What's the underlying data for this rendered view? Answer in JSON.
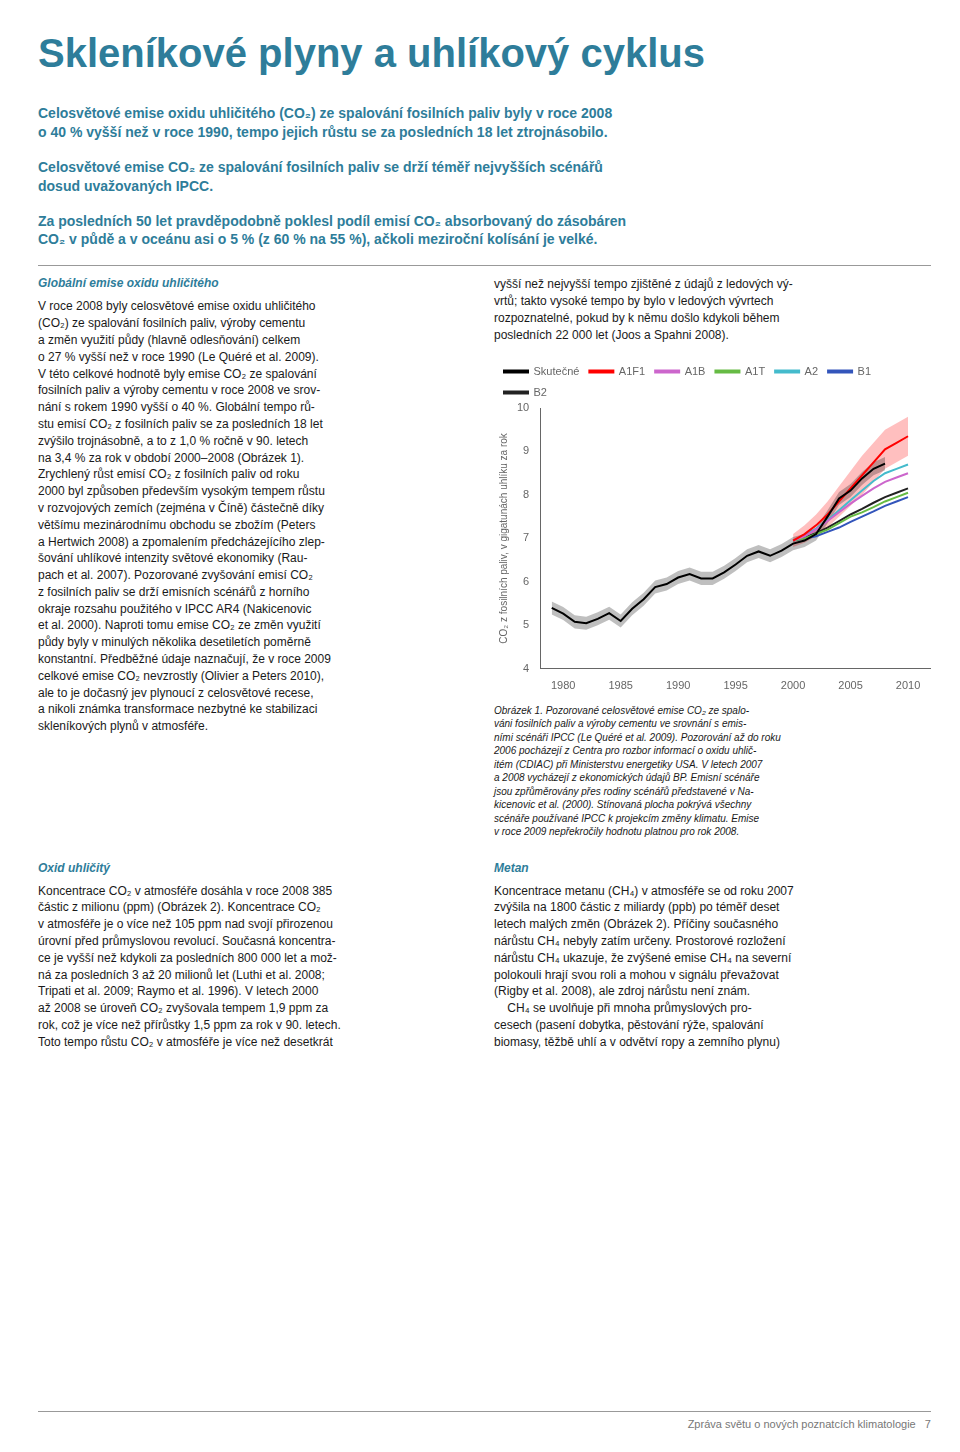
{
  "title": "Skleníkové plyny a uhlíkový cyklus",
  "paragraphs": [
    "Celosvětové emise oxidu uhličitého (CO₂) ze spalování fosilních paliv byly v roce 2008\no 40 % vyšší než v roce 1990, tempo jejich růstu se za posledních 18 let ztrojnásobilo.",
    "Celosvětové emise CO₂ ze spalování fosilních paliv se drží téměř nejvyšších scénářů\ndosud uvažovaných IPCC.",
    "Za posledních 50 let pravděpodobně poklesl podíl emisí CO₂ absorbovaný do zásobáren\nCO₂ v půdě a v oceánu asi o 5 % (z 60 % na 55 %), ačkoli meziroční kolísání je velké."
  ],
  "sections": [
    {
      "title": "Globální emise oxidu uhličitého",
      "body": "V roce 2008 byly celosvětové emise oxidu uhličitého\n(CO₂) ze spalování fosilních paliv, výroby cementu\na změn využití půdy (hlavně odlesňování) celkem\no 27 % vyšší než v roce 1990 (Le Quéré et al. 2009).\nV této celkové hodnotě byly emise CO₂ ze spalování\nfosilních paliv a výroby cementu v roce 2008 ve srov-\nnání s rokem 1990 vyšší o 40 %. Globální tempo rů-\nstu emisí CO₂ z fosilních paliv se za posledních 18 let\nzvýšilo trojnásobně, a to z 1,0 % ročně v 90. letech\nna 3,4 % za rok v období 2000–2008 (Obrázek 1).\nZrychlený růst emisí CO₂ z fosilních paliv od roku\n2000 byl způsoben především vysokým tempem růstu\nv rozvojových zemích (zejména v Číně) částečně díky\nvětšímu mezinárodnímu obchodu se zbožím (Peters\na Hertwich 2008) a zpomalením předcházejícího zlep-\nšování uhlíkové intenzity světové ekonomiky (Rau-\npach et al. 2007). Pozorované zvyšování emisí CO₂\nz fosilních paliv se drží emisních scénářů z horního\nokraje rozsahu použitého v IPCC AR4 (Nakicenovic\net al. 2000). Naproti tomu emise CO₂ ze změn využití\npůdy byly v minulých několika desetiletích poměrně\nkonstantní. Předběžné údaje naznačují, že v roce 2009\ncelkové emise CO₂ nevzrostly (Olivier a Peters 2010),\nale to je dočasný jev plynoucí z celosvětové recese,\na nikoli známka transformace nezbytné ke stabilizaci\nskleníkových plynů v atmosféře."
    },
    {
      "title": "Oxid uhličitý",
      "body": "Koncentrace CO₂ v atmosféře dosáhla v roce 2008 385\nčástic z milionu (ppm) (Obrázek 2). Koncentrace CO₂\nv atmosféře je o více než 105 ppm nad svojí přirozenou\núrovní před průmyslovou revolucí. Současná koncentra-\nce je vyšší než kdykoli za posledních 800 000 let a mož-\nná za posledních 3 až 20 milionů let (Luthi et al. 2008;\nTripati et al. 2009; Raymo et al. 1996). V letech 2000\naž 2008 se úroveň CO₂ zvyšovala tempem 1,9 ppm za\nrok, což je více než přírůstky 1,5 ppm za rok v 90. letech.\nToto tempo růstu CO₂ v atmosféře je více než desetkrát"
    },
    {
      "title": "Metan",
      "body": "Koncentrace metanu (CH₄) v atmosféře se od roku 2007\nzvýšila na 1800 částic z miliardy (ppb) po téměř deset\nletech malých změn (Obrázek 2). Příčiny současného\nnárůstu CH₄ nebyly zatím určeny. Prostorové rozložení\nnárůstu CH₄ ukazuje, že zvýšené emise CH₄ na severní\npolokouli hrají svou roli a mohou v signálu převažovat\n(Rigby et al. 2008), ale zdroj nárůstu není znám.\n    CH₄ se uvolňuje při mnoha průmyslových pro-\ncesech (pasení dobytka, pěstování rýže, spalování\nbiomasy, těžbě uhlí a v odvětví ropy a zemního plynu)"
    }
  ],
  "right_top": "vyšší než nejvyšší tempo zjištěné z údajů z ledových vý-\nvrtů; takto vysoké tempo by bylo v ledových vývrtech\nrozpoznatelné, pokud by k němu došlo kdykoli během\nposledních 22 000 let (Joos a Spahni 2008).",
  "footer": "Zpráva světu o nových poznatcích klimatologie   7",
  "chart_data": {
    "type": "line",
    "ylabel": "CO₂ z fosilních paliv, v gigatunách uhlíku za rok",
    "caption": "Obrázek 1. Pozorované celosvětové emise CO₂ ze spalo-\nváni fosilních paliv a výroby cementu ve srovnání s emis-\nními scénáři IPCC (Le Quéré et al. 2009). Pozorování až do roku\n2006 pocházejí z Centra pro rozbor informací o oxidu uhlič-\nitém (CDIAC) při Ministerstvu energetiky USA. V letech 2007\na 2008 vycházejí z ekonomických údajů BP. Emisní scénáře\njsou zpřůměrovány přes rodiny scénářů představené v Na-\nkicenovic et al. (2000). Stínovaná plocha pokrývá všechny\nscénáře používané IPCC k projekcím změny klimatu. Emise\nv roce 2009 nepřekročily hodnotu platnou pro rok 2008.",
    "xlim": [
      1978,
      2012
    ],
    "xticks": [
      1980,
      1985,
      1990,
      1995,
      2000,
      2005,
      2010
    ],
    "ylim": [
      4,
      10
    ],
    "yticks": [
      4,
      5,
      6,
      7,
      8,
      9,
      10
    ],
    "grid": false,
    "legend": "upper left",
    "series": [
      {
        "name": "Skutečné",
        "color": "#000000",
        "x": [
          1979,
          1980,
          1981,
          1982,
          1983,
          1984,
          1985,
          1986,
          1987,
          1988,
          1989,
          1990,
          1991,
          1992,
          1993,
          1994,
          1995,
          1996,
          1997,
          1998,
          1999,
          2000,
          2001,
          2002,
          2003,
          2004,
          2005,
          2006,
          2007,
          2008
        ],
        "values": [
          5.4,
          5.27,
          5.08,
          5.05,
          5.15,
          5.28,
          5.1,
          5.38,
          5.6,
          5.88,
          5.95,
          6.1,
          6.18,
          6.08,
          6.08,
          6.22,
          6.4,
          6.6,
          6.7,
          6.6,
          6.72,
          6.88,
          6.95,
          7.1,
          7.5,
          7.92,
          8.1,
          8.38,
          8.6,
          8.72
        ],
        "lower": [
          5.25,
          5.12,
          4.93,
          4.9,
          5.0,
          5.13,
          4.95,
          5.23,
          5.45,
          5.73,
          5.8,
          5.95,
          6.03,
          5.93,
          5.93,
          6.07,
          6.25,
          6.45,
          6.55,
          6.45,
          6.57,
          6.73,
          6.8,
          6.95,
          7.35,
          7.77,
          7.95,
          8.23,
          8.45,
          8.57
        ],
        "upper": [
          5.55,
          5.42,
          5.23,
          5.2,
          5.3,
          5.43,
          5.25,
          5.53,
          5.75,
          6.03,
          6.1,
          6.25,
          6.33,
          6.23,
          6.23,
          6.37,
          6.55,
          6.75,
          6.85,
          6.75,
          6.87,
          7.03,
          7.1,
          7.25,
          7.65,
          8.07,
          8.25,
          8.53,
          8.75,
          8.87
        ]
      },
      {
        "name": "A1F1",
        "color": "#ff0000",
        "x": [
          2000,
          2001,
          2002,
          2003,
          2004,
          2005,
          2006,
          2007,
          2008,
          2009,
          2010
        ],
        "values": [
          6.95,
          7.1,
          7.3,
          7.55,
          7.85,
          8.15,
          8.45,
          8.75,
          9.05,
          9.2,
          9.35
        ],
        "lower": [
          6.8,
          6.9,
          7.05,
          7.25,
          7.5,
          7.75,
          8.0,
          8.3,
          8.6,
          8.75,
          8.9
        ],
        "upper": [
          7.1,
          7.3,
          7.55,
          7.85,
          8.2,
          8.55,
          8.9,
          9.2,
          9.5,
          9.65,
          9.8
        ]
      },
      {
        "name": "A1B",
        "color": "#cc66cc",
        "x": [
          2000,
          2001,
          2002,
          2003,
          2004,
          2005,
          2006,
          2007,
          2008,
          2009,
          2010
        ],
        "values": [
          6.95,
          7.05,
          7.2,
          7.4,
          7.6,
          7.8,
          7.98,
          8.15,
          8.3,
          8.4,
          8.5
        ]
      },
      {
        "name": "A1T",
        "color": "#66bb44",
        "x": [
          2000,
          2001,
          2002,
          2003,
          2004,
          2005,
          2006,
          2007,
          2008,
          2009,
          2010
        ],
        "values": [
          6.95,
          7.0,
          7.1,
          7.2,
          7.35,
          7.5,
          7.6,
          7.72,
          7.85,
          7.95,
          8.05
        ]
      },
      {
        "name": "A2",
        "color": "#44bbcc",
        "x": [
          2000,
          2001,
          2002,
          2003,
          2004,
          2005,
          2006,
          2007,
          2008,
          2009,
          2010
        ],
        "values": [
          6.95,
          7.08,
          7.22,
          7.42,
          7.65,
          7.88,
          8.1,
          8.32,
          8.5,
          8.6,
          8.7
        ]
      },
      {
        "name": "B1",
        "color": "#3355bb",
        "x": [
          2000,
          2001,
          2002,
          2003,
          2004,
          2005,
          2006,
          2007,
          2008,
          2009,
          2010
        ],
        "values": [
          6.95,
          7.0,
          7.05,
          7.15,
          7.25,
          7.38,
          7.5,
          7.62,
          7.75,
          7.85,
          7.95
        ]
      },
      {
        "name": "B2",
        "color": "#222222",
        "x": [
          2000,
          2001,
          2002,
          2003,
          2004,
          2005,
          2006,
          2007,
          2008,
          2009,
          2010
        ],
        "values": [
          6.95,
          7.02,
          7.12,
          7.25,
          7.4,
          7.55,
          7.68,
          7.82,
          7.95,
          8.05,
          8.15
        ]
      }
    ]
  }
}
